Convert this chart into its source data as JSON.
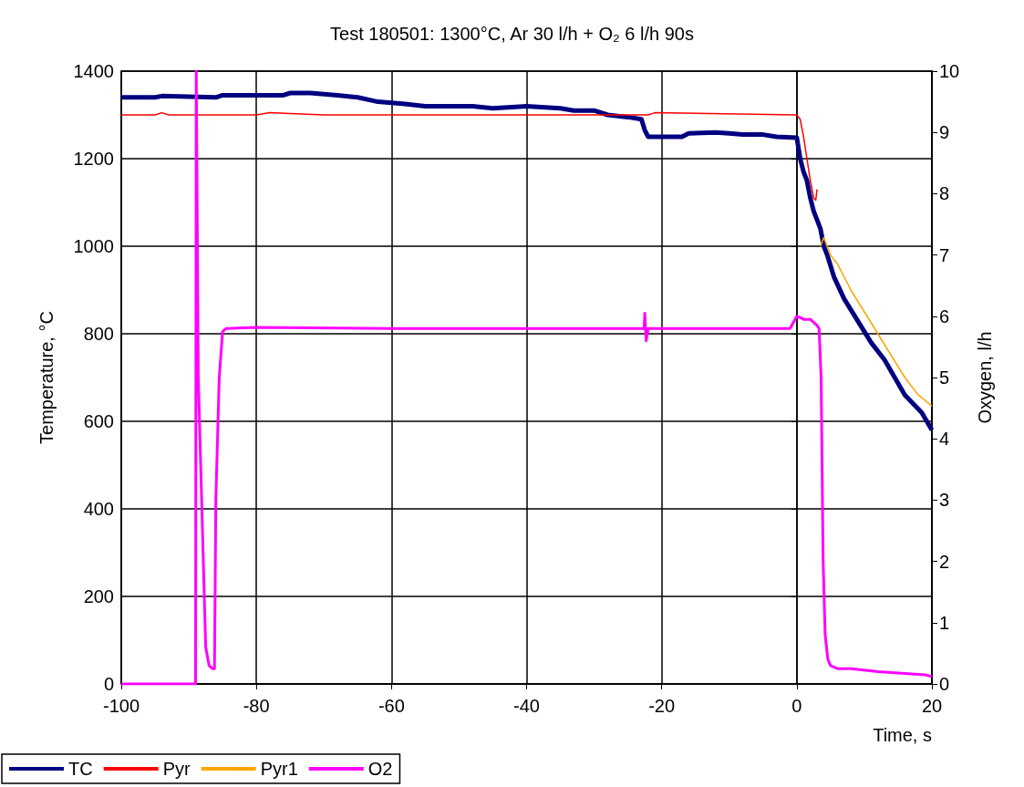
{
  "chart_data": {
    "type": "line",
    "title": "Test 180501: 1300°C, Ar 30 l/h + O₂ 6 l/h 90s",
    "xlabel": "Time, s",
    "ylabel": "Temperature, °C",
    "y2label": "Oxygen, l/h",
    "xlim": [
      -100,
      20
    ],
    "xticks": [
      -100,
      -80,
      -60,
      -40,
      -20,
      0,
      20
    ],
    "ylim": [
      0,
      1400
    ],
    "yticks": [
      0,
      200,
      400,
      600,
      800,
      1000,
      1200,
      1400
    ],
    "y2lim": [
      0,
      10
    ],
    "y2ticks": [
      0,
      1,
      2,
      3,
      4,
      5,
      6,
      7,
      8,
      9,
      10
    ],
    "grid": true,
    "legend": "bottom left",
    "marker": "none",
    "series": [
      {
        "name": "TC",
        "color": "#000080",
        "x": [
          -100,
          -95,
          -94,
          -86,
          -85,
          -76,
          -75,
          -72,
          -68,
          -65,
          -62,
          -58,
          -55,
          -48,
          -45,
          -40,
          -35,
          -33,
          -30,
          -28,
          -25,
          -23,
          -22.5,
          -22,
          -21,
          -17,
          -16,
          -12,
          -10,
          -8,
          -5,
          -3,
          0,
          0.5,
          1,
          1.5,
          2,
          2.5,
          3,
          3.5,
          4,
          4.5,
          5.5,
          7,
          9,
          11,
          13,
          14.5,
          16,
          18.5,
          20
        ],
        "values": [
          1340,
          1340,
          1343,
          1340,
          1345,
          1345,
          1350,
          1350,
          1345,
          1340,
          1330,
          1325,
          1320,
          1320,
          1315,
          1320,
          1315,
          1310,
          1310,
          1300,
          1295,
          1290,
          1265,
          1250,
          1250,
          1250,
          1258,
          1260,
          1258,
          1255,
          1255,
          1250,
          1248,
          1200,
          1170,
          1150,
          1110,
          1080,
          1060,
          1040,
          1000,
          980,
          930,
          880,
          830,
          780,
          740,
          700,
          660,
          620,
          580
        ]
      },
      {
        "name": "Pyr",
        "color": "#ff0000",
        "x": [
          -100,
          -95,
          -94,
          -93,
          -80,
          -78,
          -75,
          -70,
          -65,
          -40,
          -30,
          -22,
          -21,
          0,
          0.5,
          1,
          1.5,
          2,
          2.5,
          2.8,
          3
        ],
        "values": [
          1300,
          1300,
          1305,
          1300,
          1300,
          1305,
          1303,
          1300,
          1300,
          1300,
          1300,
          1300,
          1305,
          1300,
          1290,
          1250,
          1200,
          1150,
          1110,
          1105,
          1130
        ]
      },
      {
        "name": "Pyr1",
        "color": "#ffa500",
        "x": [
          3.5,
          4,
          4.5,
          5,
          6,
          8,
          10,
          12,
          14,
          16,
          18,
          20
        ],
        "values": [
          1000,
          1020,
          1000,
          980,
          960,
          900,
          850,
          800,
          750,
          700,
          660,
          635
        ]
      },
      {
        "name": "O2",
        "color": "#ff00ff",
        "axis": "y2",
        "x": [
          -100,
          -89,
          -88.9,
          -88.6,
          -87.5,
          -87,
          -86.5,
          -86.2,
          -86,
          -85.5,
          -85,
          -84.5,
          -80,
          -60,
          -40,
          -25,
          -22.6,
          -22.5,
          -22.3,
          -22,
          -20,
          -10,
          -1,
          0,
          0.5,
          1,
          2,
          3,
          3.3,
          3.6,
          3.9,
          4.2,
          4.6,
          5,
          6,
          8,
          12,
          15,
          19,
          20
        ],
        "values": [
          0,
          0,
          10,
          5,
          0.6,
          0.3,
          0.25,
          0.25,
          3,
          5,
          5.75,
          5.8,
          5.82,
          5.8,
          5.8,
          5.8,
          5.8,
          6.05,
          5.6,
          5.8,
          5.8,
          5.8,
          5.8,
          6,
          5.98,
          5.95,
          5.95,
          5.85,
          5.8,
          5,
          2,
          0.8,
          0.4,
          0.3,
          0.25,
          0.25,
          0.2,
          0.18,
          0.15,
          0.12
        ]
      }
    ]
  }
}
